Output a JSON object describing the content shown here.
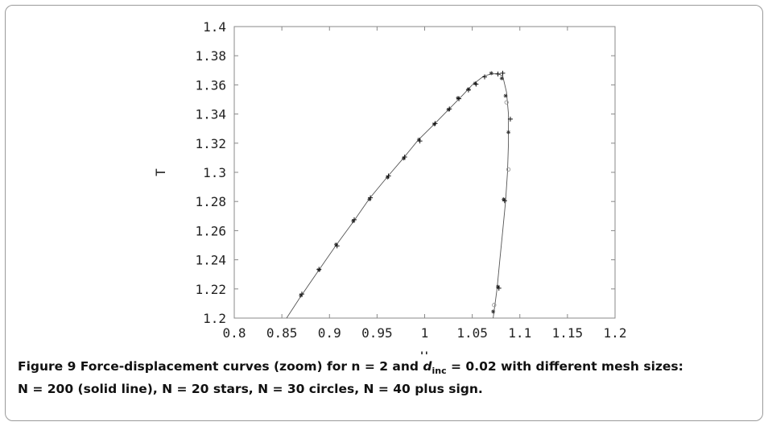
{
  "chart_data": {
    "type": "line",
    "xlabel": "U",
    "ylabel": "T",
    "xlim": [
      0.8,
      1.2
    ],
    "ylim": [
      1.2,
      1.4
    ],
    "x_ticks": [
      "0.8",
      "0.85",
      "0.9",
      "0.95",
      "1",
      "1.05",
      "1.1",
      "1.15",
      "1.2"
    ],
    "y_ticks": [
      "1.2",
      "1.22",
      "1.24",
      "1.26",
      "1.28",
      "1.3",
      "1.32",
      "1.34",
      "1.36",
      "1.38",
      "1.4"
    ],
    "grid": false,
    "series": [
      {
        "name": "N = 200",
        "style": "solid-line",
        "points": [
          [
            0.855,
            1.2
          ],
          [
            0.87,
            1.215
          ],
          [
            0.889,
            1.233
          ],
          [
            0.907,
            1.25
          ],
          [
            0.925,
            1.266
          ],
          [
            0.942,
            1.282
          ],
          [
            0.961,
            1.297
          ],
          [
            0.978,
            1.31
          ],
          [
            0.993,
            1.322
          ],
          [
            1.01,
            1.333
          ],
          [
            1.025,
            1.343
          ],
          [
            1.04,
            1.353
          ],
          [
            1.05,
            1.36
          ],
          [
            1.062,
            1.366
          ],
          [
            1.07,
            1.3675
          ],
          [
            1.077,
            1.3677
          ],
          [
            1.082,
            1.366
          ],
          [
            1.086,
            1.355
          ],
          [
            1.088,
            1.34
          ],
          [
            1.088,
            1.32
          ],
          [
            1.087,
            1.3
          ],
          [
            1.085,
            1.28
          ],
          [
            1.082,
            1.26
          ],
          [
            1.079,
            1.24
          ],
          [
            1.076,
            1.22
          ],
          [
            1.072,
            1.2
          ]
        ]
      },
      {
        "name": "N = 20",
        "style": "star",
        "points": [
          [
            0.87,
            1.2155
          ],
          [
            0.889,
            1.233
          ],
          [
            0.907,
            1.2505
          ],
          [
            0.925,
            1.2665
          ],
          [
            0.942,
            1.2815
          ],
          [
            0.961,
            1.2965
          ],
          [
            0.978,
            1.3095
          ],
          [
            0.994,
            1.3225
          ],
          [
            1.01,
            1.333
          ],
          [
            1.025,
            1.343
          ],
          [
            1.035,
            1.351
          ],
          [
            1.046,
            1.357
          ],
          [
            1.053,
            1.361
          ],
          [
            1.07,
            1.368
          ],
          [
            1.081,
            1.3645
          ],
          [
            1.085,
            1.3525
          ],
          [
            1.088,
            1.3275
          ],
          [
            1.083,
            1.2815
          ],
          [
            1.077,
            1.2215
          ],
          [
            1.072,
            1.2045
          ]
        ]
      },
      {
        "name": "N = 30",
        "style": "circle",
        "points": [
          [
            1.086,
            1.348
          ],
          [
            1.088,
            1.302
          ],
          [
            1.073,
            1.209
          ]
        ]
      },
      {
        "name": "N = 40",
        "style": "plus",
        "points": [
          [
            0.871,
            1.2165
          ],
          [
            0.889,
            1.2335
          ],
          [
            0.908,
            1.2495
          ],
          [
            0.926,
            1.2675
          ],
          [
            0.943,
            1.2825
          ],
          [
            0.962,
            1.2975
          ],
          [
            0.979,
            1.3105
          ],
          [
            0.995,
            1.3215
          ],
          [
            1.011,
            1.3335
          ],
          [
            1.026,
            1.3435
          ],
          [
            1.036,
            1.3505
          ],
          [
            1.046,
            1.3565
          ],
          [
            1.054,
            1.3605
          ],
          [
            1.063,
            1.3655
          ],
          [
            1.077,
            1.3675
          ],
          [
            1.082,
            1.368
          ],
          [
            1.09,
            1.3365
          ],
          [
            1.084,
            1.2805
          ],
          [
            1.078,
            1.2205
          ]
        ]
      }
    ]
  },
  "caption": {
    "prefix": "Figure 9 Force-displacement curves (zoom) for n = 2 and ",
    "d_symbol": "d",
    "d_subscript": "inc",
    "suffix": " = 0.02 with different mesh sizes:",
    "line2": "N = 200 (solid line), N = 20 stars, N = 30 circles, N = 40 plus sign."
  }
}
